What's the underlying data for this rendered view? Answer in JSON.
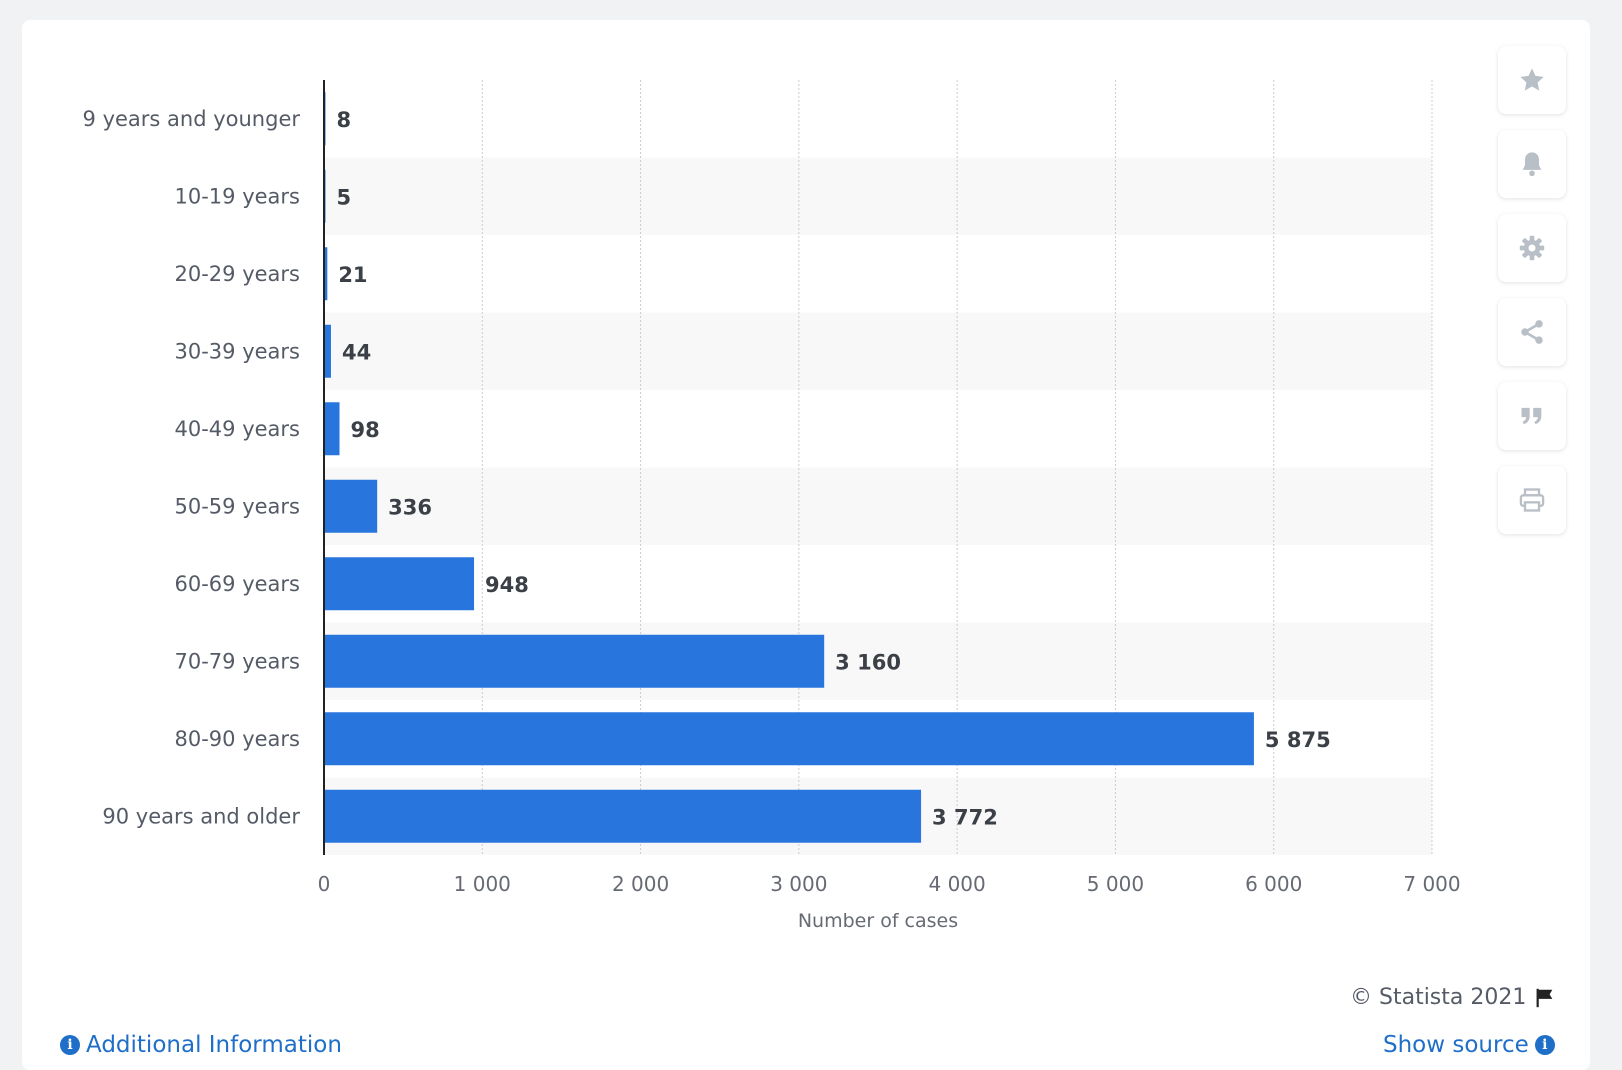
{
  "chart_data": {
    "type": "bar",
    "orientation": "horizontal",
    "categories": [
      "9 years and younger",
      "10-19 years",
      "20-29 years",
      "30-39 years",
      "40-49 years",
      "50-59 years",
      "60-69 years",
      "70-79 years",
      "80-90 years",
      "90 years and older"
    ],
    "values": [
      8,
      5,
      21,
      44,
      98,
      336,
      948,
      3160,
      5875,
      3772
    ],
    "value_labels": [
      "8",
      "5",
      "21",
      "44",
      "98",
      "336",
      "948",
      "3 160",
      "5 875",
      "3 772"
    ],
    "xlabel": "Number of cases",
    "xlim": [
      0,
      7000
    ],
    "xticks": [
      0,
      1000,
      2000,
      3000,
      4000,
      5000,
      6000,
      7000
    ],
    "xtick_labels": [
      "0",
      "1 000",
      "2 000",
      "3 000",
      "4 000",
      "5 000",
      "6 000",
      "7 000"
    ],
    "grid": true,
    "bar_color": "#2876dd"
  },
  "footer": {
    "copyright": "© Statista 2021",
    "additional_info": "Additional Information",
    "show_source": "Show source"
  },
  "toolbar": {
    "icons": [
      "star-icon",
      "bell-icon",
      "gear-icon",
      "share-icon",
      "quote-icon",
      "print-icon"
    ]
  }
}
